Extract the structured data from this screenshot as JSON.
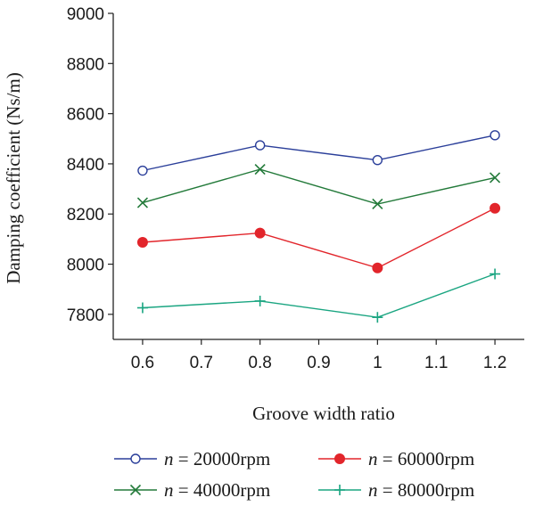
{
  "chart_data": {
    "type": "line",
    "title": "",
    "xlabel": "Groove width ratio",
    "ylabel": "Damping coefficient (Ns/m)",
    "xlim": [
      0.55,
      1.25
    ],
    "ylim": [
      7700,
      9000
    ],
    "xticks": [
      0.6,
      0.7,
      0.8,
      0.9,
      1,
      1.1,
      1.2
    ],
    "xtick_labels": [
      "0.6",
      "0.7",
      "0.8",
      "0.9",
      "1",
      "1.1",
      "1.2"
    ],
    "yticks": [
      7800,
      8000,
      8200,
      8400,
      8600,
      8800,
      9000
    ],
    "ytick_labels": [
      "7800",
      "8000",
      "8200",
      "8400",
      "8600",
      "8800",
      "9000"
    ],
    "x": [
      0.6,
      0.8,
      1.0,
      1.2
    ],
    "grid": false,
    "legend_position": "bottom",
    "series": [
      {
        "name": "n = 20000rpm",
        "symbol": "n",
        "equals": "= 20000rpm",
        "marker": "open-circle",
        "color": "#2b3f9a",
        "values": [
          8373,
          8474,
          8415,
          8514
        ]
      },
      {
        "name": "n = 40000rpm",
        "symbol": "n",
        "equals": "= 40000rpm",
        "marker": "x",
        "color": "#237a3a",
        "values": [
          8245,
          8378,
          8240,
          8345
        ]
      },
      {
        "name": "n = 60000rpm",
        "symbol": "n",
        "equals": "= 60000rpm",
        "marker": "filled-circle",
        "color": "#e2252b",
        "values": [
          8087,
          8124,
          7985,
          8223
        ]
      },
      {
        "name": "n = 80000rpm",
        "symbol": "n",
        "equals": "= 80000rpm",
        "marker": "plus",
        "color": "#1aa581",
        "values": [
          7826,
          7853,
          7788,
          7961
        ]
      }
    ]
  }
}
